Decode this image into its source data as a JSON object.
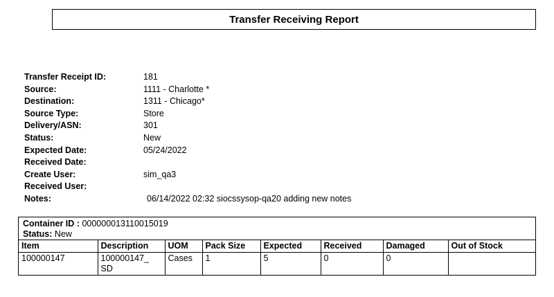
{
  "title": "Transfer Receiving Report",
  "fields": [
    {
      "label": "Transfer Receipt ID:",
      "value": "181"
    },
    {
      "label": "Source:",
      "value": "1111 - Charlotte *"
    },
    {
      "label": "Destination:",
      "value": "1311 - Chicago*"
    },
    {
      "label": "Source Type:",
      "value": "Store"
    },
    {
      "label": "Delivery/ASN:",
      "value": "301"
    },
    {
      "label": "Status:",
      "value": "New"
    },
    {
      "label": "Expected Date:",
      "value": "05/24/2022"
    },
    {
      "label": "Received Date:",
      "value": ""
    },
    {
      "label": "Create User:",
      "value": "sim_qa3"
    },
    {
      "label": "Received User:",
      "value": ""
    },
    {
      "label": "Notes:",
      "value": "06/14/2022 02:32 siocssysop-qa20 adding new notes"
    }
  ],
  "container": {
    "id_label": "Container ID :",
    "id": "000000013110015019",
    "status_label": "Status:",
    "status": "New",
    "columns": [
      "Item",
      "Description",
      "UOM",
      "Pack Size",
      "Expected",
      "Received",
      "Damaged",
      "Out of Stock"
    ],
    "rows": [
      [
        "100000147",
        "100000147_ SD",
        "Cases",
        "1",
        "5",
        "0",
        "0",
        ""
      ]
    ]
  }
}
